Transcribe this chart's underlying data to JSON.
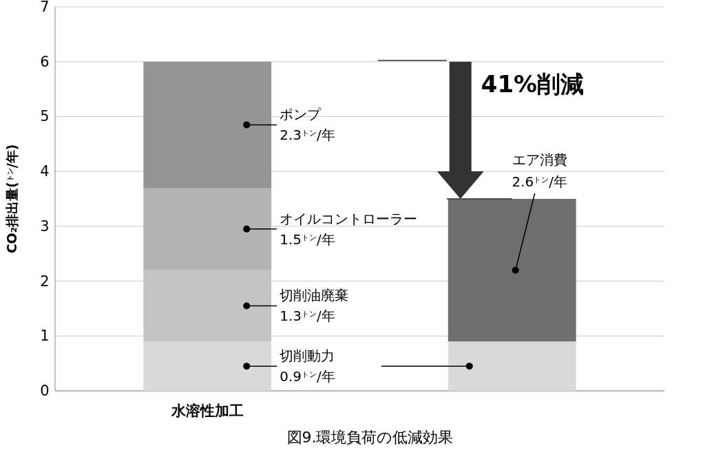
{
  "chart_data": {
    "type": "bar",
    "stacked": true,
    "ylabel": "CO₂排出量($^{トン}$/年)",
    "categories": [
      "水溶性加工",
      null
    ],
    "series": [
      {
        "name": "切削動力",
        "color": "#d9d9d9",
        "values": [
          0.9,
          0.9
        ],
        "value_labels": [
          "0.9$^{トン}$/年",
          null
        ]
      },
      {
        "name": "切削油廃棄",
        "color": "#c4c4c4",
        "values": [
          1.3,
          null
        ],
        "value_labels": [
          "1.3$^{トン}$/年",
          null
        ]
      },
      {
        "name": "オイルコントローラー",
        "color": "#b3b3b3",
        "values": [
          1.5,
          null
        ],
        "value_labels": [
          "1.5$^{トン}$/年",
          null
        ]
      },
      {
        "name": "ポンプ",
        "color": "#959595",
        "values": [
          2.3,
          null
        ],
        "value_labels": [
          "2.3$^{トン}$/年",
          null
        ]
      },
      {
        "name": "エア消費",
        "color": "#6e6e6e",
        "values": [
          null,
          2.6
        ],
        "value_labels": [
          null,
          "2.6$^{トン}$/年"
        ]
      }
    ],
    "ylim": [
      0,
      7
    ],
    "yticks": [
      0,
      1,
      2,
      3,
      4,
      5,
      6,
      7
    ],
    "grid": "y",
    "annotations": [
      "41%削減",
      "図9.環境負荷の低減効果"
    ]
  }
}
